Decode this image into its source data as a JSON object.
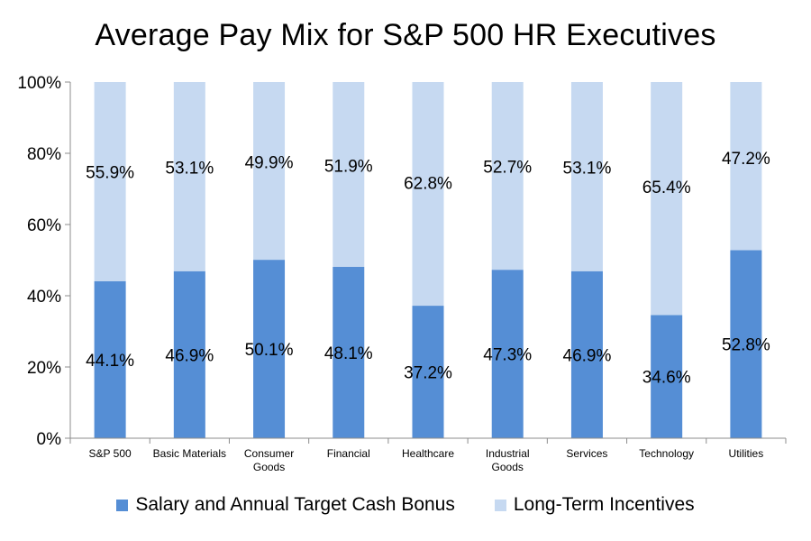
{
  "chart_data": {
    "type": "bar",
    "stacked": true,
    "title": "Average Pay Mix for S&P 500 HR Executives",
    "categories": [
      [
        "S&P 500"
      ],
      [
        "Basic Materials"
      ],
      [
        "Consumer",
        "Goods"
      ],
      [
        "Financial"
      ],
      [
        "Healthcare"
      ],
      [
        "Industrial",
        "Goods"
      ],
      [
        "Services"
      ],
      [
        "Technology"
      ],
      [
        "Utilities"
      ]
    ],
    "series": [
      {
        "name": "Salary and Annual Target Cash Bonus",
        "color": "#558ed5",
        "values": [
          44.1,
          46.9,
          50.1,
          48.1,
          37.2,
          47.3,
          46.9,
          34.6,
          52.8
        ],
        "labels": [
          "44.1%",
          "46.9%",
          "50.1%",
          "48.1%",
          "37.2%",
          "47.3%",
          "46.9%",
          "34.6%",
          "52.8%"
        ]
      },
      {
        "name": "Long-Term Incentives",
        "color": "#c6d9f1",
        "values": [
          55.9,
          53.1,
          49.9,
          51.9,
          62.8,
          52.7,
          53.1,
          65.4,
          47.2
        ],
        "labels": [
          "55.9%",
          "53.1%",
          "49.9%",
          "51.9%",
          "62.8%",
          "52.7%",
          "53.1%",
          "65.4%",
          "47.2%"
        ]
      }
    ],
    "ylim": [
      0,
      100
    ],
    "yticks": [
      "0%",
      "20%",
      "40%",
      "60%",
      "80%",
      "100%"
    ],
    "grid": false,
    "legend_position": "bottom"
  }
}
